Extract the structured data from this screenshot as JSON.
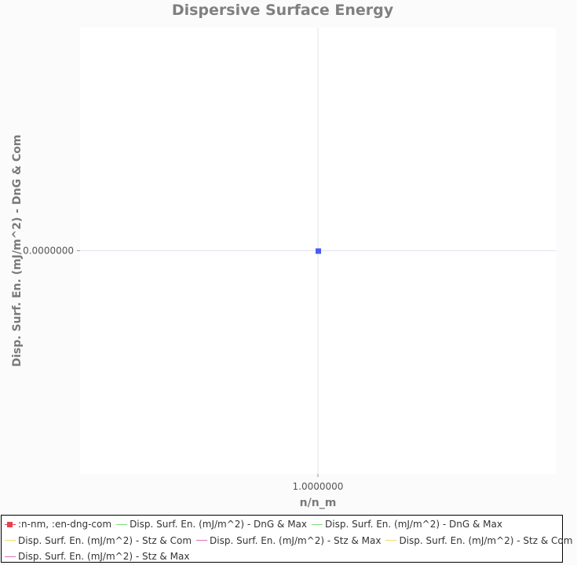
{
  "chart_data": {
    "type": "scatter",
    "title": "Dispersive Surface Energy",
    "xlabel": "n/n_m",
    "ylabel": "Disp. Surf. En. (mJ/m^2) - DnG & Com",
    "x_ticks": [
      {
        "value": 1.0,
        "label": "1.0000000"
      }
    ],
    "y_ticks": [
      {
        "value": 0.0,
        "label": "0.0000000"
      }
    ],
    "xlim": [
      0.0,
      2.0
    ],
    "ylim": [
      -1.0,
      1.0
    ],
    "grid": true,
    "legend_position": "bottom",
    "series": [
      {
        "name": ":n-nm, :en-dng-com",
        "marker": "square",
        "line": true,
        "color": "#e8424f",
        "points": [
          [
            1.0,
            0.0
          ]
        ]
      },
      {
        "name": "Disp. Surf. En. (mJ/m^2) - DnG & Max",
        "marker": "none",
        "line": true,
        "color": "#7ddc7a",
        "points": []
      },
      {
        "name": "Disp. Surf. En. (mJ/m^2) - DnG & Max",
        "marker": "none",
        "line": true,
        "color": "#7ddc7a",
        "points": []
      },
      {
        "name": "Disp. Surf. En. (mJ/m^2) - Stz & Com",
        "marker": "none",
        "line": true,
        "color": "#f2dc6a",
        "points": []
      },
      {
        "name": "Disp. Surf. En. (mJ/m^2) - Stz & Max",
        "marker": "none",
        "line": true,
        "color": "#d86fc0",
        "points": []
      },
      {
        "name": "Disp. Surf. En. (mJ/m^2) - Stz & Com",
        "marker": "none",
        "line": true,
        "color": "#f2dc6a",
        "points": []
      },
      {
        "name": "Disp. Surf. En. (mJ/m^2) - Stz & Max",
        "marker": "none",
        "line": true,
        "color": "#d86fc0",
        "points": []
      }
    ],
    "plotted_point_color": "#4a5cf0"
  }
}
